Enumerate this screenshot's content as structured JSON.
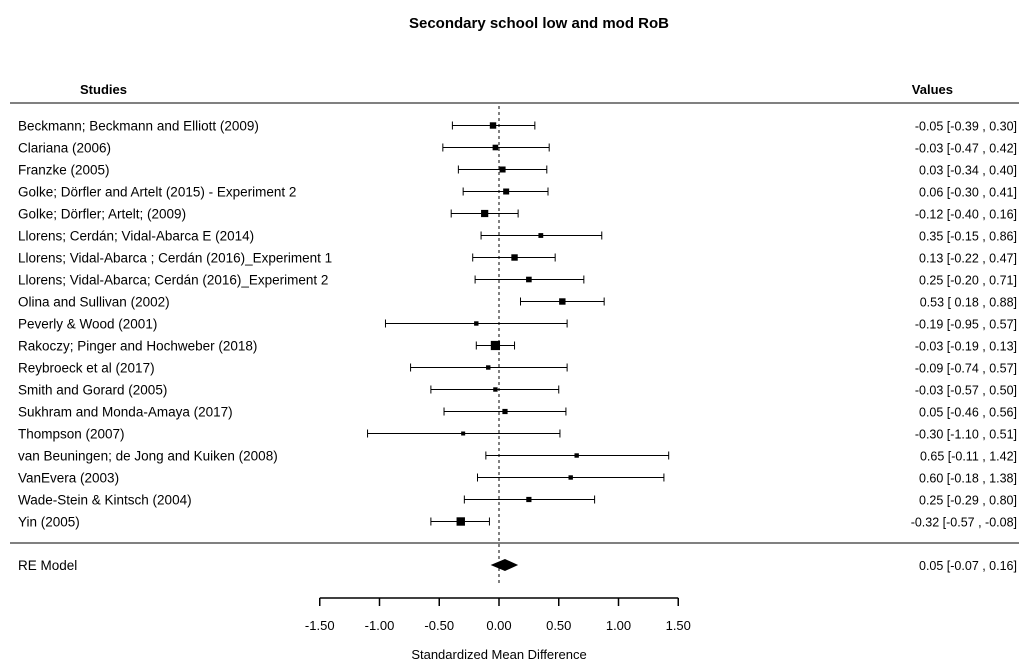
{
  "chart_data": {
    "type": "forest",
    "title": "Secondary school low and mod RoB",
    "studies_header": "Studies",
    "values_header": "Values",
    "xlabel": "Standardized Mean Difference",
    "xlim": [
      -1.5,
      1.5
    ],
    "x_ticks": [
      -1.5,
      -1.0,
      -0.5,
      0.0,
      0.5,
      1.0,
      1.5
    ],
    "x_tick_labels": [
      "-1.50",
      "-1.00",
      "-0.50",
      "0.00",
      "0.50",
      "1.00",
      "1.50"
    ],
    "reference_line": 0.0,
    "studies": [
      {
        "label": "Beckmann; Beckmann and Elliott (2009)",
        "estimate": -0.05,
        "lower": -0.39,
        "upper": 0.3,
        "text": "-0.05 [-0.39 ,  0.30]",
        "weight": 0.55
      },
      {
        "label": "Clariana (2006)",
        "estimate": -0.03,
        "lower": -0.47,
        "upper": 0.42,
        "text": "-0.03 [-0.47 ,  0.42]",
        "weight": 0.45
      },
      {
        "label": "Franzke (2005)",
        "estimate": 0.03,
        "lower": -0.34,
        "upper": 0.4,
        "text": "0.03 [-0.34 ,  0.40]",
        "weight": 0.5
      },
      {
        "label": "Golke; Dörfler and Artelt (2015) - Experiment 2",
        "estimate": 0.06,
        "lower": -0.3,
        "upper": 0.41,
        "text": "0.06 [-0.30 ,  0.41]",
        "weight": 0.5
      },
      {
        "label": "Golke; Dörfler; Artelt; (2009)",
        "estimate": -0.12,
        "lower": -0.4,
        "upper": 0.16,
        "text": "-0.12 [-0.40 ,  0.16]",
        "weight": 0.65
      },
      {
        "label": "Llorens; Cerdán; Vidal-Abarca E (2014)",
        "estimate": 0.35,
        "lower": -0.15,
        "upper": 0.86,
        "text": "0.35 [-0.15 ,  0.86]",
        "weight": 0.35
      },
      {
        "label": "Llorens; Vidal-Abarca ; Cerdán  (2016)_Experiment 1",
        "estimate": 0.13,
        "lower": -0.22,
        "upper": 0.47,
        "text": "0.13 [-0.22 ,  0.47]",
        "weight": 0.55
      },
      {
        "label": "Llorens; Vidal-Abarca; Cerdán (2016)_Experiment 2",
        "estimate": 0.25,
        "lower": -0.2,
        "upper": 0.71,
        "text": "0.25 [-0.20 ,  0.71]",
        "weight": 0.45
      },
      {
        "label": "Olina and Sullivan (2002)",
        "estimate": 0.53,
        "lower": 0.18,
        "upper": 0.88,
        "text": "0.53 [ 0.18 ,  0.88]",
        "weight": 0.55
      },
      {
        "label": "Peverly  & Wood (2001)",
        "estimate": -0.19,
        "lower": -0.95,
        "upper": 0.57,
        "text": "-0.19 [-0.95 ,  0.57]",
        "weight": 0.3
      },
      {
        "label": "Rakoczy; Pinger and Hochweber (2018)",
        "estimate": -0.03,
        "lower": -0.19,
        "upper": 0.13,
        "text": "-0.03 [-0.19 ,  0.13]",
        "weight": 0.9
      },
      {
        "label": "Reybroeck et al (2017)",
        "estimate": -0.09,
        "lower": -0.74,
        "upper": 0.57,
        "text": "-0.09 [-0.74 ,  0.57]",
        "weight": 0.3
      },
      {
        "label": "Smith and Gorard (2005)",
        "estimate": -0.03,
        "lower": -0.57,
        "upper": 0.5,
        "text": "-0.03 [-0.57 ,  0.50]",
        "weight": 0.3
      },
      {
        "label": "Sukhram and Monda-Amaya (2017)",
        "estimate": 0.05,
        "lower": -0.46,
        "upper": 0.56,
        "text": "0.05 [-0.46 ,  0.56]",
        "weight": 0.4
      },
      {
        "label": "Thompson (2007)",
        "estimate": -0.3,
        "lower": -1.1,
        "upper": 0.51,
        "text": "-0.30 [-1.10 ,  0.51]",
        "weight": 0.25
      },
      {
        "label": "van Beuningen; de Jong and Kuiken (2008)",
        "estimate": 0.65,
        "lower": -0.11,
        "upper": 1.42,
        "text": "0.65 [-0.11 ,  1.42]",
        "weight": 0.3
      },
      {
        "label": "VanEvera (2003)",
        "estimate": 0.6,
        "lower": -0.18,
        "upper": 1.38,
        "text": "0.60 [-0.18 ,  1.38]",
        "weight": 0.3
      },
      {
        "label": "Wade-Stein & Kintsch (2004)",
        "estimate": 0.25,
        "lower": -0.29,
        "upper": 0.8,
        "text": "0.25 [-0.29 ,  0.80]",
        "weight": 0.4
      },
      {
        "label": "Yin (2005)",
        "estimate": -0.32,
        "lower": -0.57,
        "upper": -0.08,
        "text": "-0.32 [-0.57 , -0.08]",
        "weight": 0.8
      }
    ],
    "summary": {
      "label": "RE Model",
      "estimate": 0.05,
      "lower": -0.07,
      "upper": 0.16,
      "text": "0.05 [-0.07 ,  0.16]"
    }
  }
}
